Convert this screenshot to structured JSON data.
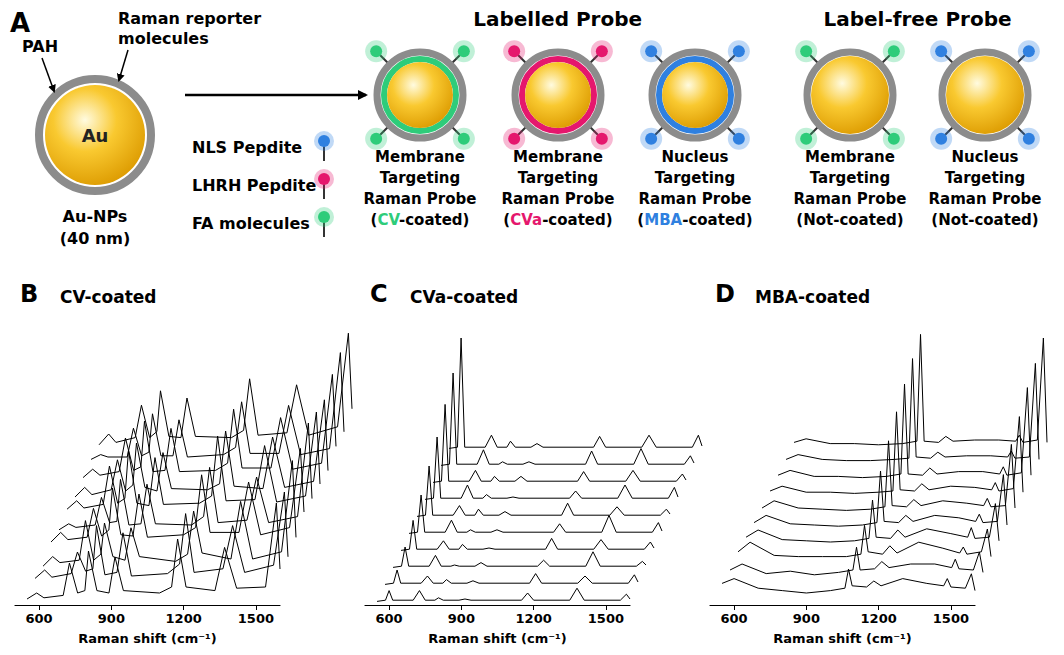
{
  "diagram": {
    "letter": "A",
    "nanoparticle": {
      "core": "Au",
      "shell": "PAH",
      "reporter_lines": [
        "Raman reporter",
        "molecules"
      ],
      "caption_lines": [
        "Au-NPs",
        "(40 nm)"
      ]
    },
    "ligands": [
      {
        "name": "NLS Pepdite",
        "color": "#2f80e0"
      },
      {
        "name": "LHRH Pepdite",
        "color": "#e5176d"
      },
      {
        "name": "FA molecules",
        "color": "#2ecc7a"
      }
    ],
    "groups": [
      {
        "title": "Labelled Probe",
        "probes": [
          {
            "ligand": "FA molecules",
            "ring_color": "#2ecc7a",
            "lines": [
              "Membrane",
              "Targeting",
              "Raman Probe"
            ],
            "last_line": [
              {
                "text": "("
              },
              {
                "text": "CV",
                "color": "#2ecc7a"
              },
              {
                "text": "-coated)"
              }
            ]
          },
          {
            "ligand": "LHRH Pepdite",
            "ring_color": "#e5176d",
            "lines": [
              "Membrane",
              "Targeting",
              "Raman Probe"
            ],
            "last_line": [
              {
                "text": "("
              },
              {
                "text": "CVa",
                "color": "#e5176d"
              },
              {
                "text": "-coated)"
              }
            ]
          },
          {
            "ligand": "NLS Pepdite",
            "ring_color": "#2f80e0",
            "lines": [
              "Nucleus",
              "Targeting",
              "Raman Probe"
            ],
            "last_line": [
              {
                "text": "("
              },
              {
                "text": "MBA",
                "color": "#2f80e0"
              },
              {
                "text": "-coated)"
              }
            ]
          }
        ]
      },
      {
        "title": "Label-free Probe",
        "probes": [
          {
            "ligand": "FA molecules",
            "lines": [
              "Membrane",
              "Targeting",
              "Raman Probe"
            ],
            "last_line": [
              {
                "text": "(Not-coated)"
              }
            ]
          },
          {
            "ligand": "NLS Pepdite",
            "lines": [
              "Nucleus",
              "Targeting",
              "Raman Probe"
            ],
            "last_line": [
              {
                "text": "(Not-coated)"
              }
            ]
          }
        ]
      }
    ]
  },
  "chart_data": [
    {
      "type": "line",
      "label": "B",
      "title": "CV-coated",
      "xlabel": "Raman shift (cm⁻¹)",
      "xlim": [
        500,
        1600
      ],
      "xticks": [
        600,
        900,
        1200,
        1500
      ],
      "ylim": [
        0,
        1
      ],
      "tick_labels": "x",
      "grid": false,
      "color": "#000000",
      "x": [
        550,
        590,
        620,
        700,
        726,
        760,
        790,
        805,
        840,
        890,
        915,
        950,
        1100,
        1150,
        1175,
        1210,
        1330,
        1370,
        1420,
        1540,
        1585,
        1600
      ],
      "series": [
        {
          "values": [
            0.05,
            0.1,
            0.06,
            0.08,
            0.35,
            0.1,
            0.12,
            0.45,
            0.12,
            0.1,
            0.4,
            0.12,
            0.1,
            0.15,
            0.55,
            0.15,
            0.12,
            0.48,
            0.14,
            0.15,
            0.85,
            0.3
          ]
        },
        {
          "values": [
            0.08,
            0.15,
            0.09,
            0.12,
            0.3,
            0.14,
            0.16,
            0.52,
            0.11,
            0.13,
            0.46,
            0.1,
            0.12,
            0.2,
            0.62,
            0.13,
            0.16,
            0.52,
            0.13,
            0.19,
            0.8,
            0.26
          ]
        },
        {
          "values": [
            0.04,
            0.12,
            0.07,
            0.09,
            0.42,
            0.09,
            0.14,
            0.4,
            0.12,
            0.09,
            0.36,
            0.12,
            0.08,
            0.14,
            0.5,
            0.15,
            0.1,
            0.58,
            0.1,
            0.16,
            0.92,
            0.28
          ]
        },
        {
          "values": [
            0.1,
            0.18,
            0.12,
            0.14,
            0.38,
            0.15,
            0.2,
            0.55,
            0.16,
            0.15,
            0.5,
            0.14,
            0.16,
            0.22,
            0.66,
            0.18,
            0.18,
            0.6,
            0.16,
            0.22,
            0.88,
            0.35
          ]
        },
        {
          "values": [
            0.06,
            0.11,
            0.08,
            0.1,
            0.33,
            0.12,
            0.13,
            0.48,
            0.1,
            0.11,
            0.44,
            0.11,
            0.1,
            0.17,
            0.58,
            0.12,
            0.14,
            0.5,
            0.12,
            0.17,
            0.95,
            0.32
          ]
        },
        {
          "values": [
            0.09,
            0.16,
            0.1,
            0.13,
            0.45,
            0.14,
            0.18,
            0.58,
            0.14,
            0.12,
            0.52,
            0.13,
            0.14,
            0.2,
            0.7,
            0.16,
            0.17,
            0.62,
            0.15,
            0.2,
            0.9,
            0.3
          ]
        },
        {
          "values": [
            0.05,
            0.13,
            0.07,
            0.11,
            0.36,
            0.1,
            0.15,
            0.5,
            0.13,
            0.1,
            0.42,
            0.12,
            0.11,
            0.16,
            0.6,
            0.14,
            0.12,
            0.55,
            0.13,
            0.18,
            0.86,
            0.27
          ]
        },
        {
          "values": [
            0.07,
            0.14,
            0.09,
            0.12,
            0.4,
            0.13,
            0.16,
            0.54,
            0.12,
            0.13,
            0.48,
            0.12,
            0.13,
            0.19,
            0.64,
            0.15,
            0.15,
            0.57,
            0.14,
            0.19,
            0.93,
            0.33
          ]
        },
        {
          "values": [
            0.08,
            0.12,
            0.1,
            0.1,
            0.34,
            0.11,
            0.14,
            0.46,
            0.11,
            0.11,
            0.41,
            0.1,
            0.12,
            0.18,
            0.56,
            0.13,
            0.13,
            0.53,
            0.12,
            0.17,
            0.97,
            0.31
          ]
        },
        {
          "values": [
            0.06,
            0.15,
            0.08,
            0.12,
            0.39,
            0.12,
            0.17,
            0.51,
            0.13,
            0.12,
            0.45,
            0.13,
            0.12,
            0.18,
            0.61,
            0.14,
            0.16,
            0.56,
            0.14,
            0.21,
            0.99,
            0.36
          ]
        }
      ]
    },
    {
      "type": "line",
      "label": "C",
      "title": "CVa-coated",
      "xlabel": "Raman shift (cm⁻¹)",
      "xlim": [
        500,
        1600
      ],
      "xticks": [
        600,
        900,
        1200,
        1500
      ],
      "ylim": [
        0,
        1
      ],
      "tick_labels": "x",
      "grid": false,
      "color": "#000000",
      "x": [
        550,
        585,
        600,
        615,
        700,
        726,
        750,
        790,
        805,
        825,
        890,
        915,
        940,
        1150,
        1175,
        1200,
        1350,
        1380,
        1410,
        1560,
        1585,
        1600
      ],
      "series": [
        {
          "values": [
            0.03,
            0.04,
            0.12,
            0.04,
            0.04,
            0.12,
            0.04,
            0.04,
            0.06,
            0.04,
            0.04,
            0.05,
            0.04,
            0.04,
            0.1,
            0.04,
            0.04,
            0.14,
            0.04,
            0.04,
            0.09,
            0.05
          ]
        },
        {
          "values": [
            0.03,
            0.04,
            0.15,
            0.04,
            0.04,
            0.1,
            0.04,
            0.04,
            0.07,
            0.04,
            0.04,
            0.06,
            0.04,
            0.04,
            0.12,
            0.04,
            0.04,
            0.1,
            0.04,
            0.04,
            0.11,
            0.05
          ]
        },
        {
          "values": [
            0.03,
            0.04,
            0.2,
            0.04,
            0.04,
            0.13,
            0.04,
            0.04,
            0.05,
            0.04,
            0.04,
            0.07,
            0.04,
            0.04,
            0.09,
            0.04,
            0.04,
            0.16,
            0.04,
            0.04,
            0.08,
            0.05
          ]
        },
        {
          "values": [
            0.03,
            0.04,
            0.28,
            0.04,
            0.04,
            0.11,
            0.04,
            0.04,
            0.08,
            0.04,
            0.04,
            0.05,
            0.04,
            0.04,
            0.13,
            0.04,
            0.04,
            0.12,
            0.04,
            0.04,
            0.1,
            0.05
          ]
        },
        {
          "values": [
            0.03,
            0.04,
            0.35,
            0.04,
            0.04,
            0.14,
            0.04,
            0.04,
            0.06,
            0.04,
            0.04,
            0.06,
            0.04,
            0.04,
            0.11,
            0.04,
            0.04,
            0.18,
            0.04,
            0.04,
            0.12,
            0.05
          ]
        },
        {
          "values": [
            0.03,
            0.04,
            0.45,
            0.04,
            0.04,
            0.12,
            0.04,
            0.04,
            0.09,
            0.04,
            0.04,
            0.07,
            0.04,
            0.04,
            0.14,
            0.04,
            0.04,
            0.11,
            0.04,
            0.04,
            0.09,
            0.05
          ]
        },
        {
          "values": [
            0.03,
            0.04,
            0.55,
            0.04,
            0.04,
            0.15,
            0.04,
            0.04,
            0.07,
            0.04,
            0.04,
            0.05,
            0.04,
            0.04,
            0.1,
            0.04,
            0.04,
            0.15,
            0.04,
            0.04,
            0.13,
            0.05
          ]
        },
        {
          "values": [
            0.03,
            0.04,
            0.68,
            0.04,
            0.04,
            0.13,
            0.04,
            0.04,
            0.08,
            0.04,
            0.04,
            0.08,
            0.04,
            0.04,
            0.12,
            0.04,
            0.04,
            0.13,
            0.04,
            0.04,
            0.1,
            0.05
          ]
        },
        {
          "values": [
            0.03,
            0.04,
            0.8,
            0.04,
            0.04,
            0.16,
            0.04,
            0.04,
            0.06,
            0.04,
            0.04,
            0.06,
            0.04,
            0.04,
            0.15,
            0.04,
            0.04,
            0.17,
            0.04,
            0.04,
            0.11,
            0.05
          ]
        },
        {
          "values": [
            0.03,
            0.04,
            0.95,
            0.04,
            0.04,
            0.14,
            0.04,
            0.04,
            0.09,
            0.04,
            0.04,
            0.07,
            0.04,
            0.04,
            0.13,
            0.04,
            0.04,
            0.14,
            0.04,
            0.04,
            0.14,
            0.05
          ]
        }
      ]
    },
    {
      "type": "line",
      "label": "D",
      "title": "MBA-coated",
      "xlabel": "Raman shift (cm⁻¹)",
      "xlim": [
        500,
        1600
      ],
      "xticks": [
        600,
        900,
        1200,
        1500
      ],
      "ylim": [
        0,
        1
      ],
      "tick_labels": "x",
      "grid": false,
      "color": "#000000",
      "x": [
        550,
        600,
        700,
        800,
        900,
        1000,
        1060,
        1075,
        1090,
        1150,
        1180,
        1210,
        1300,
        1400,
        1470,
        1485,
        1500,
        1560,
        1585,
        1600
      ],
      "series": [
        {
          "values": [
            0.18,
            0.22,
            0.14,
            0.12,
            0.1,
            0.12,
            0.14,
            0.3,
            0.16,
            0.15,
            0.2,
            0.16,
            0.22,
            0.18,
            0.16,
            0.22,
            0.15,
            0.14,
            0.26,
            0.12
          ]
        },
        {
          "values": [
            0.15,
            0.2,
            0.12,
            0.14,
            0.11,
            0.13,
            0.15,
            0.34,
            0.15,
            0.16,
            0.22,
            0.17,
            0.2,
            0.2,
            0.17,
            0.24,
            0.16,
            0.15,
            0.3,
            0.13
          ]
        },
        {
          "values": [
            0.16,
            0.24,
            0.13,
            0.12,
            0.12,
            0.12,
            0.14,
            0.38,
            0.16,
            0.14,
            0.21,
            0.15,
            0.24,
            0.19,
            0.15,
            0.2,
            0.14,
            0.16,
            0.35,
            0.12
          ]
        },
        {
          "values": [
            0.14,
            0.2,
            0.12,
            0.11,
            0.1,
            0.11,
            0.13,
            0.45,
            0.14,
            0.13,
            0.2,
            0.14,
            0.21,
            0.17,
            0.14,
            0.22,
            0.13,
            0.14,
            0.42,
            0.11
          ]
        },
        {
          "values": [
            0.12,
            0.18,
            0.11,
            0.1,
            0.09,
            0.1,
            0.12,
            0.55,
            0.13,
            0.12,
            0.18,
            0.13,
            0.18,
            0.16,
            0.13,
            0.19,
            0.12,
            0.13,
            0.52,
            0.1
          ]
        },
        {
          "values": [
            0.1,
            0.16,
            0.1,
            0.09,
            0.08,
            0.09,
            0.11,
            0.66,
            0.12,
            0.11,
            0.17,
            0.12,
            0.16,
            0.14,
            0.12,
            0.18,
            0.11,
            0.12,
            0.63,
            0.1
          ]
        },
        {
          "values": [
            0.1,
            0.14,
            0.09,
            0.09,
            0.08,
            0.09,
            0.1,
            0.76,
            0.11,
            0.1,
            0.16,
            0.11,
            0.14,
            0.13,
            0.11,
            0.17,
            0.1,
            0.12,
            0.72,
            0.09
          ]
        },
        {
          "values": [
            0.09,
            0.13,
            0.08,
            0.08,
            0.07,
            0.08,
            0.1,
            0.85,
            0.1,
            0.09,
            0.15,
            0.1,
            0.12,
            0.12,
            0.1,
            0.16,
            0.09,
            0.11,
            0.82,
            0.09
          ]
        },
        {
          "values": [
            0.08,
            0.12,
            0.08,
            0.07,
            0.07,
            0.08,
            0.09,
            0.92,
            0.1,
            0.09,
            0.14,
            0.1,
            0.11,
            0.11,
            0.1,
            0.15,
            0.09,
            0.1,
            0.88,
            0.08
          ]
        },
        {
          "values": [
            0.08,
            0.11,
            0.07,
            0.07,
            0.06,
            0.07,
            0.09,
            0.98,
            0.09,
            0.08,
            0.13,
            0.09,
            0.1,
            0.1,
            0.09,
            0.14,
            0.08,
            0.1,
            0.95,
            0.08
          ]
        }
      ]
    }
  ]
}
